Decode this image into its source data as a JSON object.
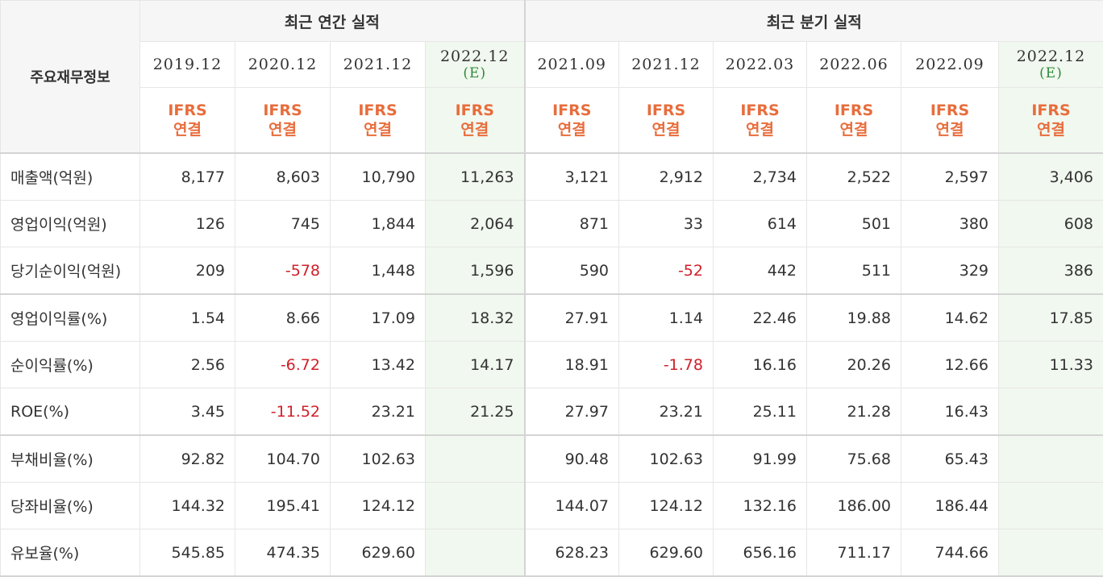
{
  "header": {
    "corner_label": "주요재무정보",
    "annual_group": "최근 연간 실적",
    "quarter_group": "최근 분기 실적",
    "periods": [
      {
        "year": "2019.12",
        "est": ""
      },
      {
        "year": "2020.12",
        "est": ""
      },
      {
        "year": "2021.12",
        "est": ""
      },
      {
        "year": "2022.12",
        "est": "(E)"
      },
      {
        "year": "2021.09",
        "est": ""
      },
      {
        "year": "2021.12",
        "est": ""
      },
      {
        "year": "2022.03",
        "est": ""
      },
      {
        "year": "2022.06",
        "est": ""
      },
      {
        "year": "2022.09",
        "est": ""
      },
      {
        "year": "2022.12",
        "est": "(E)"
      }
    ],
    "ifrs_line1": "IFRS",
    "ifrs_line2": "연결"
  },
  "rows": [
    {
      "label": "매출액(억원)",
      "values": [
        "8,177",
        "8,603",
        "10,790",
        "11,263",
        "3,121",
        "2,912",
        "2,734",
        "2,522",
        "2,597",
        "3,406"
      ]
    },
    {
      "label": "영업이익(억원)",
      "values": [
        "126",
        "745",
        "1,844",
        "2,064",
        "871",
        "33",
        "614",
        "501",
        "380",
        "608"
      ]
    },
    {
      "label": "당기순이익(억원)",
      "values": [
        "209",
        "-578",
        "1,448",
        "1,596",
        "590",
        "-52",
        "442",
        "511",
        "329",
        "386"
      ]
    },
    {
      "label": "영업이익률(%)",
      "values": [
        "1.54",
        "8.66",
        "17.09",
        "18.32",
        "27.91",
        "1.14",
        "22.46",
        "19.88",
        "14.62",
        "17.85"
      ]
    },
    {
      "label": "순이익률(%)",
      "values": [
        "2.56",
        "-6.72",
        "13.42",
        "14.17",
        "18.91",
        "-1.78",
        "16.16",
        "20.26",
        "12.66",
        "11.33"
      ]
    },
    {
      "label": "ROE(%)",
      "values": [
        "3.45",
        "-11.52",
        "23.21",
        "21.25",
        "27.97",
        "23.21",
        "25.11",
        "21.28",
        "16.43",
        ""
      ]
    },
    {
      "label": "부채비율(%)",
      "values": [
        "92.82",
        "104.70",
        "102.63",
        "",
        "90.48",
        "102.63",
        "91.99",
        "75.68",
        "65.43",
        ""
      ]
    },
    {
      "label": "당좌비율(%)",
      "values": [
        "144.32",
        "195.41",
        "124.12",
        "",
        "144.07",
        "124.12",
        "132.16",
        "186.00",
        "186.44",
        ""
      ]
    },
    {
      "label": "유보율(%)",
      "values": [
        "545.85",
        "474.35",
        "629.60",
        "",
        "628.23",
        "629.60",
        "656.16",
        "711.17",
        "744.66",
        ""
      ]
    }
  ],
  "colors": {
    "ifrs": "#e86d3c",
    "negative": "#d0202a",
    "estimate_bg": "#f1f8ef",
    "estimate_text": "#2e8b3a"
  }
}
